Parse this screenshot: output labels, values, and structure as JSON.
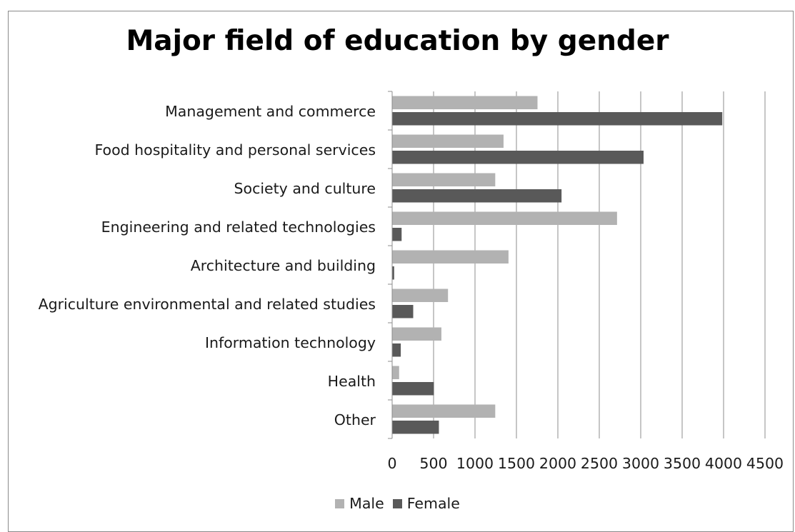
{
  "chart_data": {
    "type": "bar",
    "orientation": "horizontal",
    "title": "Major field of education by gender",
    "xlabel": "",
    "ylabel": "",
    "categories": [
      "Management and commerce",
      "Food hospitality and personal services",
      "Society and culture",
      "Engineering and related technologies",
      "Architecture and building",
      "Agriculture environmental and related studies",
      "Information technology",
      "Health",
      "Other"
    ],
    "series": [
      {
        "name": "Male",
        "color": "#b2b2b2",
        "values": [
          1750,
          1340,
          1240,
          2710,
          1400,
          670,
          590,
          80,
          1240
        ]
      },
      {
        "name": "Female",
        "color": "#595959",
        "values": [
          3980,
          3030,
          2040,
          110,
          20,
          250,
          100,
          500,
          560
        ]
      }
    ],
    "xlim": [
      0,
      4500
    ],
    "x_ticks": [
      "0",
      "500",
      "1000",
      "1500",
      "2000",
      "2500",
      "3000",
      "3500",
      "4000",
      "4500"
    ],
    "grid": true,
    "legend_position": "bottom"
  }
}
